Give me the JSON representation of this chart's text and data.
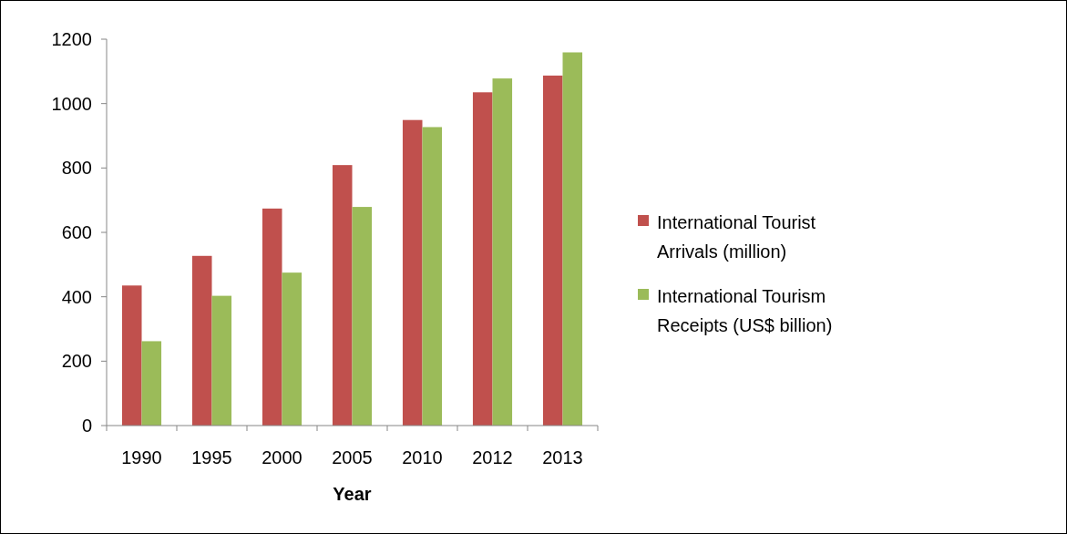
{
  "chart_data": {
    "type": "bar",
    "xlabel": "Year",
    "categories": [
      "1990",
      "1995",
      "2000",
      "2005",
      "2010",
      "2012",
      "2013"
    ],
    "series": [
      {
        "name": "International Tourist Arrivals (million)",
        "color": "#c0504d",
        "values": [
          435,
          527,
          674,
          809,
          949,
          1035,
          1087
        ]
      },
      {
        "name": "International Tourism Receipts (US$ billion)",
        "color": "#9bbb59",
        "values": [
          262,
          403,
          475,
          679,
          927,
          1078,
          1159
        ]
      }
    ],
    "ylim": [
      0,
      1200
    ],
    "yticks": [
      0,
      200,
      400,
      600,
      800,
      1000,
      1200
    ],
    "grid": false,
    "legend": "right"
  }
}
